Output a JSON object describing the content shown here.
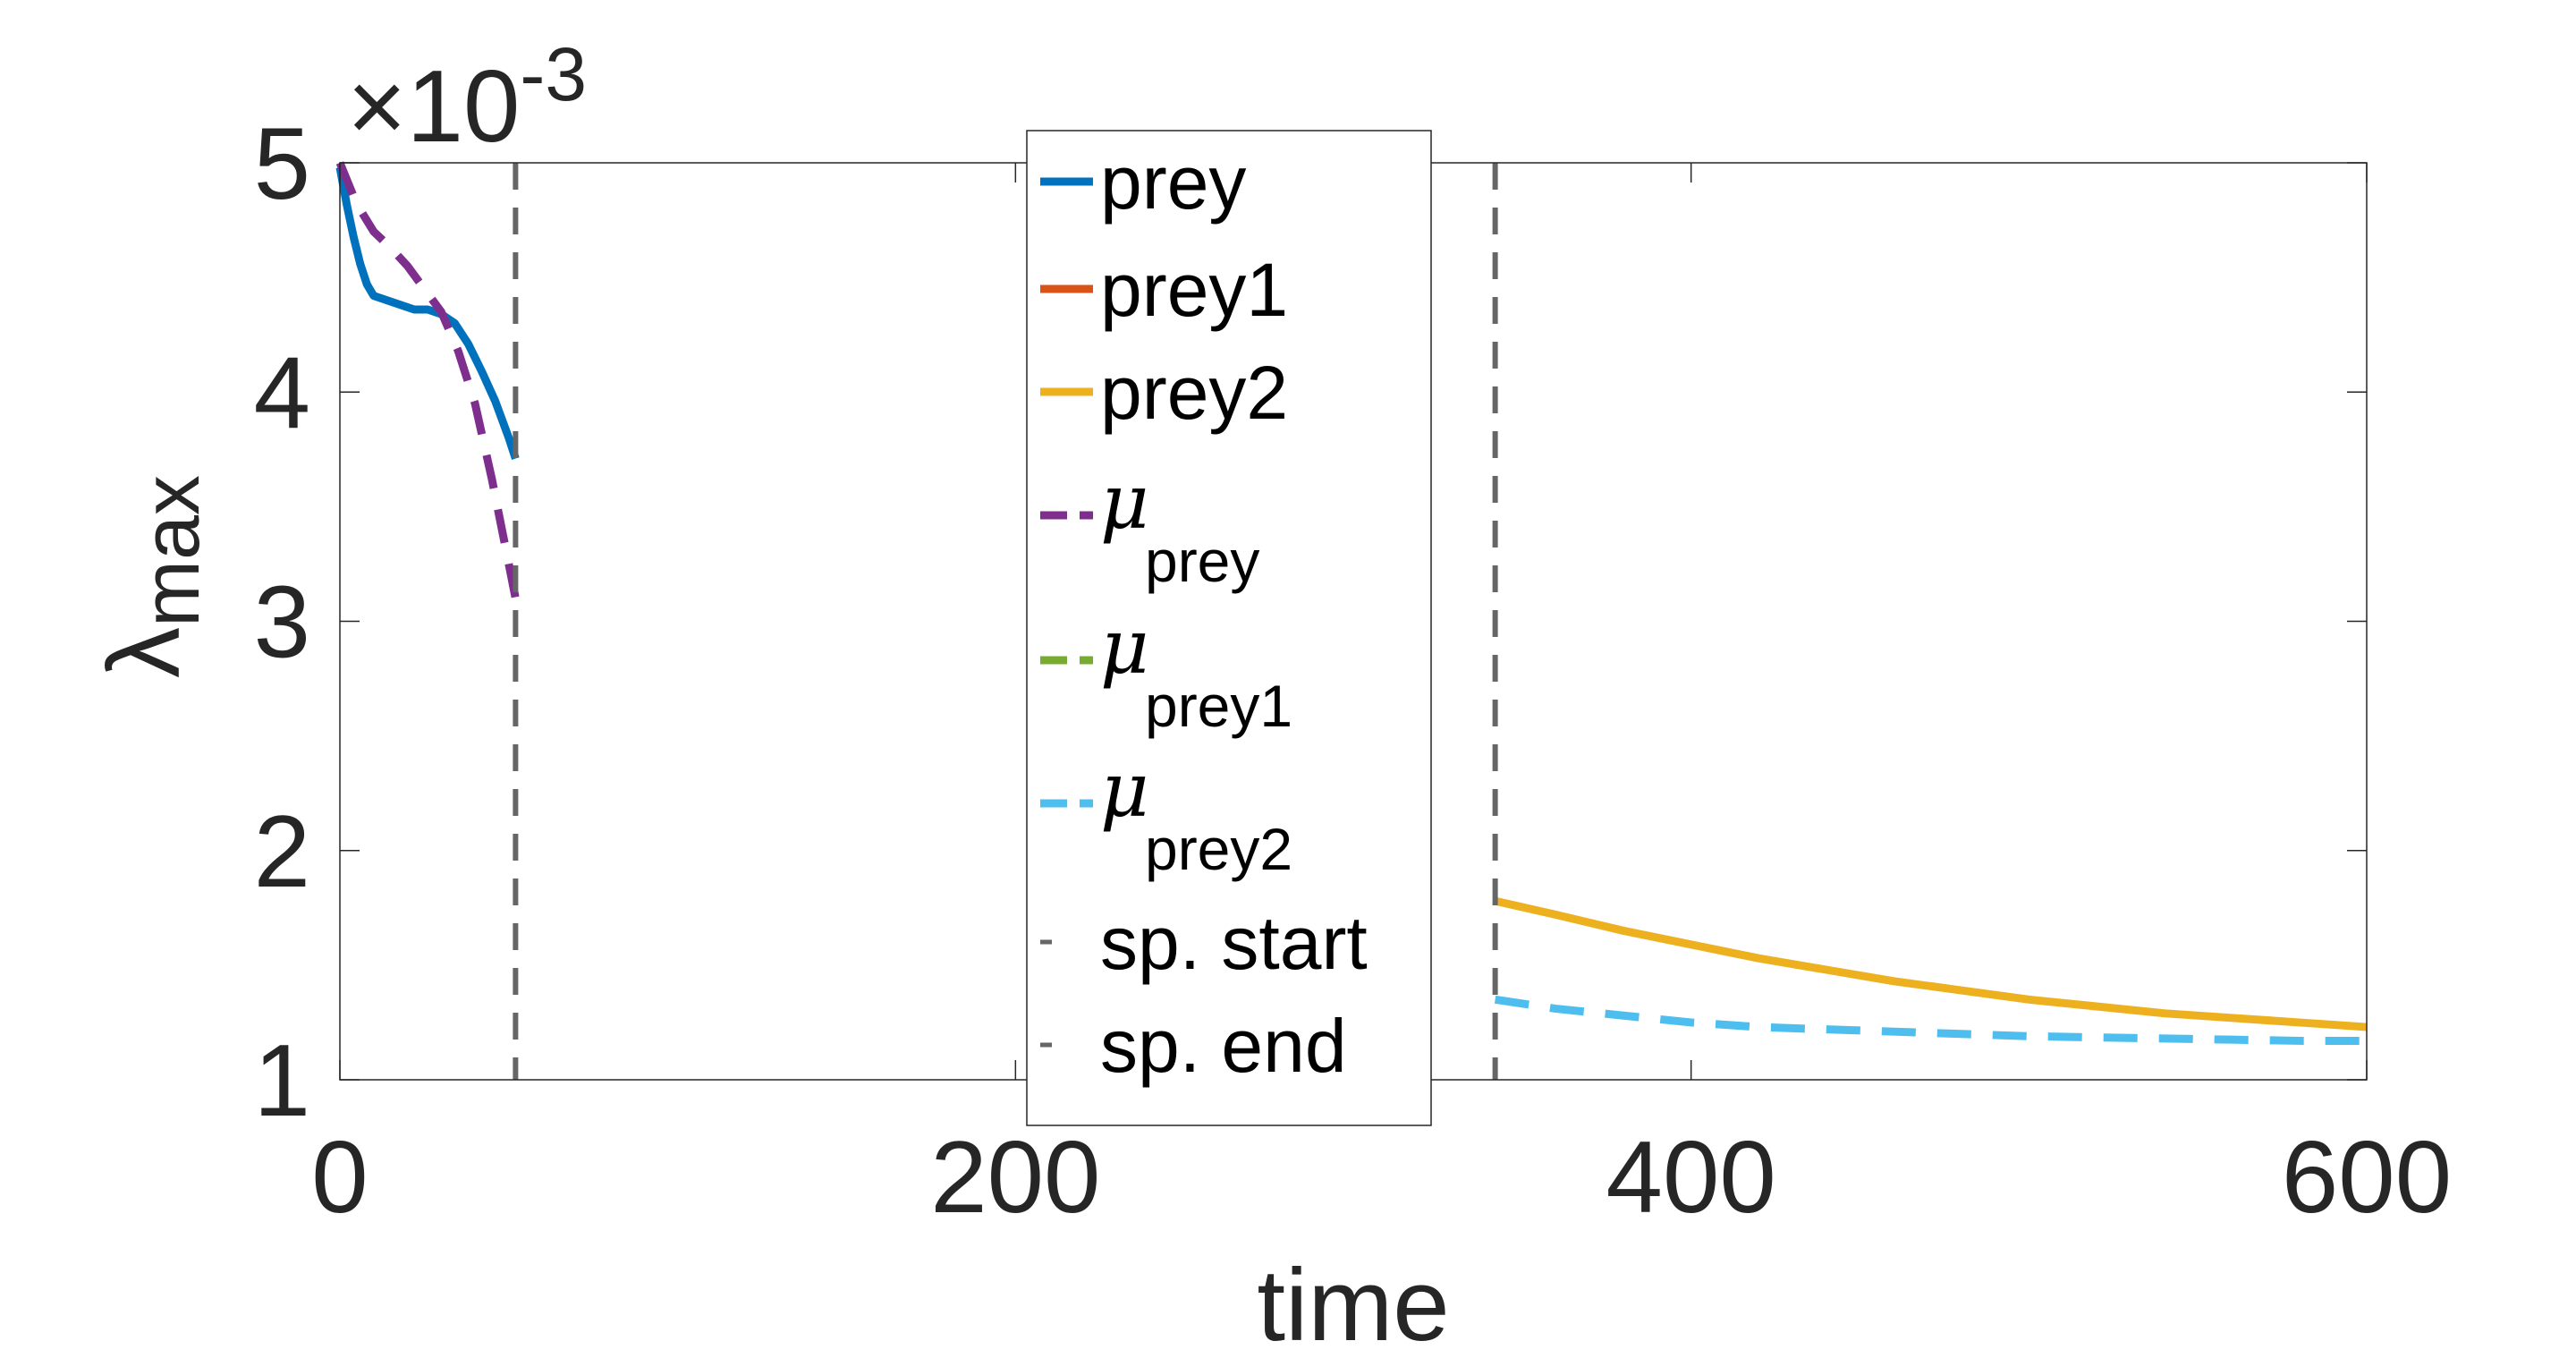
{
  "chart_data": {
    "type": "line",
    "xlabel": "time",
    "ylabel": {
      "main": "λ",
      "sub": "max"
    },
    "y_exponent": {
      "prefix": "×10",
      "power": "-3"
    },
    "xlim": [
      0,
      600
    ],
    "ylim": [
      1,
      5
    ],
    "xticks": [
      {
        "value": 0,
        "label": "0"
      },
      {
        "value": 200,
        "label": "200"
      },
      {
        "value": 400,
        "label": "400"
      },
      {
        "value": 600,
        "label": "600"
      }
    ],
    "yticks": [
      {
        "value": 1,
        "label": "1"
      },
      {
        "value": 2,
        "label": "2"
      },
      {
        "value": 3,
        "label": "3"
      },
      {
        "value": 4,
        "label": "4"
      },
      {
        "value": 5,
        "label": "5"
      }
    ],
    "grid": false,
    "box": true,
    "legend_position": "top-center",
    "series": [
      {
        "name": "prey",
        "color": "#0072BD",
        "style": "solid",
        "x": [
          0,
          2,
          4,
          6,
          8,
          10,
          14,
          18,
          22,
          26,
          30,
          34,
          38,
          42,
          46,
          50,
          52
        ],
        "y": [
          4.98,
          4.82,
          4.68,
          4.56,
          4.47,
          4.42,
          4.4,
          4.38,
          4.36,
          4.36,
          4.34,
          4.3,
          4.21,
          4.09,
          3.96,
          3.8,
          3.71
        ]
      },
      {
        "name": "prey1",
        "color": "#D95319",
        "style": "solid",
        "x": [],
        "y": []
      },
      {
        "name": "prey2",
        "color": "#EDB120",
        "style": "solid",
        "x": [
          342,
          360,
          380,
          400,
          420,
          440,
          460,
          480,
          500,
          520,
          540,
          560,
          580,
          600
        ],
        "y": [
          1.78,
          1.72,
          1.65,
          1.59,
          1.53,
          1.48,
          1.43,
          1.39,
          1.35,
          1.32,
          1.29,
          1.27,
          1.25,
          1.23
        ]
      },
      {
        "name": "μprey",
        "label_main": "μ",
        "label_sub": "prey",
        "color": "#7E2F8E",
        "style": "dashed",
        "x": [
          0,
          5,
          10,
          15,
          20,
          25,
          30,
          35,
          40,
          45,
          50,
          52
        ],
        "y": [
          5.0,
          4.82,
          4.7,
          4.63,
          4.55,
          4.45,
          4.35,
          4.18,
          3.95,
          3.62,
          3.25,
          3.1
        ]
      },
      {
        "name": "μprey1",
        "label_main": "μ",
        "label_sub": "prey1",
        "color": "#77AC30",
        "style": "dashed",
        "x": [],
        "y": []
      },
      {
        "name": "μprey2",
        "label_main": "μ",
        "label_sub": "prey2",
        "color": "#4DBEEE",
        "style": "dashed",
        "x": [
          342,
          360,
          380,
          400,
          420,
          440,
          460,
          480,
          500,
          520,
          540,
          560,
          580,
          600
        ],
        "y": [
          1.35,
          1.31,
          1.28,
          1.25,
          1.23,
          1.22,
          1.21,
          1.2,
          1.19,
          1.185,
          1.18,
          1.175,
          1.17,
          1.17
        ]
      }
    ],
    "vlines": [
      {
        "name": "sp. start",
        "x": 52,
        "color": "#666666",
        "style": "dashed"
      },
      {
        "name": "sp. end",
        "x": 342,
        "color": "#666666",
        "style": "dashed"
      }
    ],
    "legend": [
      {
        "label": "prey",
        "color": "#0072BD",
        "style": "solid"
      },
      {
        "label": "prey1",
        "color": "#D95319",
        "style": "solid"
      },
      {
        "label": "prey2",
        "color": "#EDB120",
        "style": "solid"
      },
      {
        "label_main": "μ",
        "label_sub": "prey",
        "color": "#7E2F8E",
        "style": "dashed"
      },
      {
        "label_main": "μ",
        "label_sub": "prey1",
        "color": "#77AC30",
        "style": "dashed"
      },
      {
        "label_main": "μ",
        "label_sub": "prey2",
        "color": "#4DBEEE",
        "style": "dashed"
      },
      {
        "label": "sp. start",
        "color": "#666666",
        "style": "dashed"
      },
      {
        "label": "sp. end",
        "color": "#666666",
        "style": "dashed"
      }
    ]
  }
}
